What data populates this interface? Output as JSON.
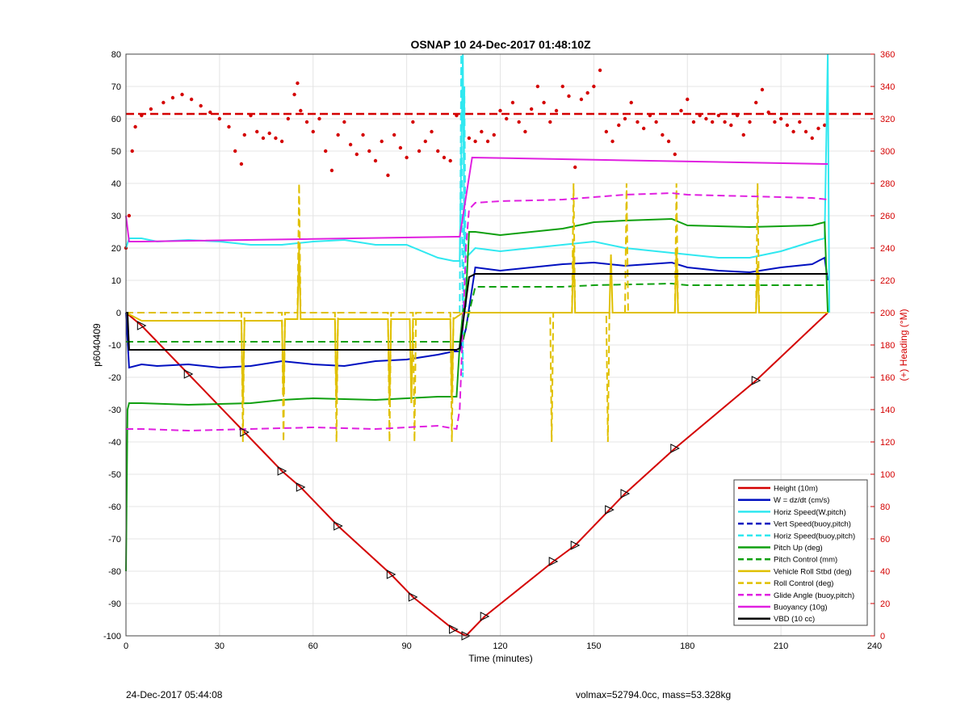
{
  "chart_data": {
    "type": "line",
    "title": "OSNAP 10 24-Dec-2017 01:48:10Z",
    "xlabel": "Time (minutes)",
    "ylabel": "p6040409",
    "ylabel_right": "(+) Heading (°M)",
    "xlim": [
      0,
      240
    ],
    "ylim": [
      -100,
      80
    ],
    "ylim_right": [
      0,
      360
    ],
    "x_ticks": [
      0,
      30,
      60,
      90,
      120,
      150,
      180,
      210,
      240
    ],
    "y_ticks": [
      -100,
      -90,
      -80,
      -70,
      -60,
      -50,
      -40,
      -30,
      -20,
      -10,
      0,
      10,
      20,
      30,
      40,
      50,
      60,
      70,
      80
    ],
    "y_ticks_right": [
      0,
      20,
      40,
      60,
      80,
      100,
      120,
      140,
      160,
      180,
      200,
      220,
      240,
      260,
      280,
      300,
      320,
      340,
      360
    ],
    "grid": true,
    "legend_position": "bottom-right",
    "series": [
      {
        "name": "Height (10m)",
        "color": "#d40000",
        "style": "solid",
        "width": 2,
        "x": [
          0,
          5,
          20,
          38,
          50,
          56,
          68,
          85,
          92,
          105,
          109,
          115,
          137,
          144,
          155,
          160,
          176,
          202,
          225
        ],
        "y": [
          0,
          -4,
          -19,
          -37,
          -49,
          -54,
          -66,
          -81,
          -88,
          -98,
          -100,
          -94,
          -77,
          -72,
          -61,
          -56,
          -42,
          -21,
          0
        ]
      },
      {
        "name": "W = dz/dt (cm/s)",
        "color": "#0010c0",
        "style": "solid",
        "width": 2,
        "x": [
          0,
          1,
          5,
          10,
          20,
          30,
          40,
          50,
          60,
          70,
          80,
          90,
          100,
          105,
          107,
          109,
          112,
          120,
          130,
          140,
          150,
          160,
          175,
          180,
          190,
          200,
          210,
          220,
          224,
          225
        ],
        "y": [
          0,
          -17,
          -16,
          -16.5,
          -16,
          -17,
          -16.5,
          -15,
          -16,
          -16.5,
          -15,
          -14.5,
          -13,
          -12,
          -12,
          -5,
          14,
          13,
          14,
          15,
          15.5,
          14.5,
          15.5,
          14,
          13,
          12.5,
          14,
          15,
          17,
          10
        ]
      },
      {
        "name": "Horiz Speed(W,pitch)",
        "color": "#30e8f0",
        "style": "solid",
        "width": 2,
        "x": [
          0,
          1,
          5,
          10,
          20,
          30,
          40,
          50,
          60,
          70,
          80,
          90,
          100,
          105,
          107,
          108,
          108.5,
          109,
          112,
          120,
          130,
          140,
          150,
          160,
          170,
          180,
          190,
          200,
          210,
          220,
          224,
          225,
          225.5
        ],
        "y": [
          20,
          23,
          23,
          22,
          22.5,
          22,
          21,
          21,
          22,
          22.5,
          21,
          21,
          17,
          16,
          16,
          80,
          20,
          17,
          20,
          19,
          20,
          21,
          22,
          20,
          19,
          18,
          17,
          17,
          19,
          22,
          23,
          80,
          0
        ]
      },
      {
        "name": "Vert Speed(buoy,pitch)",
        "color": "#0010c0",
        "style": "dashed",
        "width": 2,
        "x": [],
        "y": []
      },
      {
        "name": "Horiz Speed(buoy,pitch)",
        "color": "#30e8f0",
        "style": "dashed",
        "width": 2,
        "x": [
          107,
          107.5,
          108,
          108.5,
          109
        ],
        "y": [
          0,
          80,
          -20,
          70,
          0
        ]
      },
      {
        "name": "Pitch Up (deg)",
        "color": "#10a010",
        "style": "solid",
        "width": 2,
        "x": [
          0,
          0.5,
          1,
          5,
          20,
          40,
          50,
          60,
          80,
          90,
          100,
          106,
          107,
          108,
          109,
          110,
          112,
          120,
          140,
          150,
          160,
          175,
          180,
          200,
          220,
          224,
          225
        ],
        "y": [
          -80,
          -30,
          -28,
          -28,
          -28.5,
          -28,
          -27,
          -26.5,
          -27,
          -26.5,
          -26,
          -26,
          -10,
          0,
          5,
          25,
          25,
          24,
          26,
          28,
          28.5,
          29,
          27,
          26.5,
          27,
          28,
          0
        ]
      },
      {
        "name": "Pitch Control (mm)",
        "color": "#10a010",
        "style": "dashed",
        "width": 2,
        "x": [
          0,
          2,
          50,
          51,
          106,
          108,
          110,
          112,
          140,
          150,
          175,
          180,
          225
        ],
        "y": [
          -9,
          -9,
          -9,
          -9,
          -9,
          -9,
          0,
          8,
          8,
          8.5,
          9,
          8.5,
          8.5
        ]
      },
      {
        "name": "Vehicle Roll Stbd (deg)",
        "color": "#e0c000",
        "style": "solid",
        "width": 2,
        "x": [
          0,
          5,
          37,
          37.5,
          38,
          50,
          50.5,
          51,
          55,
          55.5,
          56,
          67,
          67.5,
          68,
          84,
          84.5,
          85,
          91,
          91.5,
          92,
          104,
          104.5,
          105,
          108,
          112,
          143,
          143.5,
          144,
          155,
          155.5,
          156,
          176,
          176.5,
          177,
          202,
          202.5,
          203,
          225
        ],
        "y": [
          0,
          -2.5,
          -2.5,
          -28,
          -2.5,
          -2.5,
          -26,
          -2,
          -2,
          20,
          -2,
          -2,
          -28,
          -2,
          -2,
          -27,
          -2,
          -2,
          -28,
          -2,
          -2,
          -27,
          -2,
          0,
          0,
          0,
          20,
          0,
          0,
          18,
          0,
          0,
          20,
          0,
          0,
          15,
          0,
          0
        ]
      },
      {
        "name": "Roll Control (deg)",
        "color": "#e0c000",
        "style": "dashed",
        "width": 2,
        "x": [
          0,
          37,
          37.5,
          38,
          50,
          50.5,
          51,
          55,
          55.5,
          56,
          67,
          67.5,
          68,
          84,
          84.5,
          85,
          92,
          92.5,
          93,
          104,
          104.5,
          105,
          136,
          136.5,
          137,
          143,
          143.5,
          144,
          154,
          154.5,
          155,
          160,
          160.5,
          161,
          176,
          176.5,
          177,
          202,
          202.5,
          203,
          225
        ],
        "y": [
          0,
          0,
          -40,
          0,
          0,
          -40,
          0,
          0,
          40,
          0,
          0,
          -40,
          0,
          0,
          -40,
          0,
          0,
          -40,
          0,
          0,
          -40,
          0,
          0,
          -40,
          0,
          0,
          40,
          0,
          0,
          -40,
          0,
          0,
          40,
          0,
          0,
          40,
          0,
          0,
          40,
          0,
          0
        ]
      },
      {
        "name": "Glide Angle (buoy,pitch)",
        "color": "#e020e0",
        "style": "dashed",
        "width": 2,
        "x": [
          0,
          1,
          5,
          20,
          40,
          60,
          80,
          90,
          100,
          106,
          107,
          109,
          110,
          112,
          120,
          140,
          160,
          175,
          180,
          200,
          220,
          225
        ],
        "y": [
          -36,
          -36,
          -36,
          -36.5,
          -36,
          -35.5,
          -36,
          -35.5,
          -35,
          -36,
          -30,
          20,
          32,
          34,
          34.5,
          35,
          36.5,
          37,
          36.5,
          36,
          35.5,
          35
        ]
      },
      {
        "name": "Buoyancy (10g)",
        "color": "#e020e0",
        "style": "solid",
        "width": 2,
        "x": [
          0,
          1,
          5,
          106,
          107,
          111,
          225
        ],
        "y": [
          30,
          22,
          22,
          23.5,
          23.5,
          48,
          46
        ]
      },
      {
        "name": "VBD (10 cc)",
        "color": "#000000",
        "style": "solid",
        "width": 2,
        "x": [
          0,
          0.5,
          1,
          5,
          106,
          107,
          108.5,
          110,
          112,
          225
        ],
        "y": [
          0,
          0,
          -11.5,
          -11.5,
          -11.5,
          -11,
          0,
          11,
          12,
          12
        ]
      }
    ],
    "heading": {
      "name": "Heading",
      "axis": "right",
      "color": "#d40000",
      "target": 323,
      "points_x": [
        0,
        1,
        2,
        3,
        5,
        8,
        12,
        15,
        18,
        21,
        24,
        27,
        30,
        33,
        35,
        37,
        38,
        40,
        42,
        44,
        46,
        48,
        50,
        52,
        54,
        55,
        56,
        58,
        60,
        62,
        64,
        66,
        68,
        70,
        72,
        74,
        76,
        78,
        80,
        82,
        84,
        86,
        88,
        90,
        92,
        94,
        96,
        98,
        100,
        102,
        104,
        106,
        108,
        110,
        112,
        114,
        116,
        118,
        120,
        122,
        124,
        126,
        128,
        130,
        132,
        134,
        136,
        138,
        140,
        142,
        144,
        146,
        148,
        150,
        152,
        154,
        156,
        158,
        160,
        162,
        164,
        166,
        168,
        170,
        172,
        174,
        176,
        178,
        180,
        182,
        184,
        186,
        188,
        190,
        192,
        194,
        196,
        198,
        200,
        202,
        204,
        206,
        208,
        210,
        212,
        214,
        216,
        218,
        220,
        222,
        224
      ],
      "points_y": [
        240,
        260,
        300,
        315,
        322,
        326,
        330,
        333,
        335,
        332,
        328,
        324,
        320,
        315,
        300,
        292,
        310,
        322,
        312,
        308,
        311,
        308,
        306,
        320,
        335,
        342,
        325,
        318,
        312,
        320,
        300,
        288,
        310,
        318,
        304,
        298,
        310,
        300,
        294,
        306,
        285,
        310,
        302,
        296,
        318,
        300,
        306,
        312,
        300,
        296,
        294,
        322,
        330,
        308,
        306,
        312,
        306,
        310,
        325,
        320,
        330,
        318,
        312,
        326,
        340,
        330,
        318,
        325,
        340,
        334,
        290,
        332,
        336,
        340,
        350,
        312,
        306,
        316,
        320,
        330,
        318,
        314,
        322,
        318,
        310,
        306,
        298,
        325,
        332,
        318,
        322,
        320,
        318,
        322,
        318,
        316,
        322,
        310,
        318,
        330,
        338,
        324,
        318,
        320,
        316,
        312,
        318,
        312,
        308,
        314,
        316
      ]
    }
  },
  "footer": {
    "left": "24-Dec-2017 05:44:08",
    "right": "volmax=52794.0cc, mass=53.328kg"
  }
}
